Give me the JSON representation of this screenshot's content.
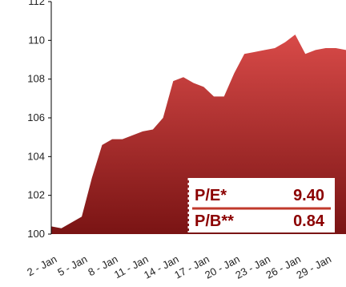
{
  "chart_data": {
    "type": "area",
    "title": "",
    "xlabel": "",
    "ylabel": "",
    "x": [
      "2-Jan",
      "3-Jan",
      "4-Jan",
      "5-Jan",
      "6-Jan",
      "7-Jan",
      "8-Jan",
      "9-Jan",
      "10-Jan",
      "11-Jan",
      "12-Jan",
      "13-Jan",
      "14-Jan",
      "15-Jan",
      "16-Jan",
      "17-Jan",
      "18-Jan",
      "19-Jan",
      "20-Jan",
      "21-Jan",
      "22-Jan",
      "23-Jan",
      "24-Jan",
      "25-Jan",
      "26-Jan",
      "27-Jan",
      "28-Jan",
      "29-Jan",
      "30-Jan",
      "31-Jan"
    ],
    "x_tick_labels": [
      "2 - Jan",
      "5 - Jan",
      "8 - Jan",
      "11 - Jan",
      "14 - Jan",
      "17 - Jan",
      "20 - Jan",
      "23 - Jan",
      "26 - Jan",
      "29 - Jan"
    ],
    "y_ticks": [
      100,
      102,
      104,
      106,
      108,
      110,
      112
    ],
    "ylim": [
      100,
      112
    ],
    "grid": false,
    "series": [
      {
        "color": "#c03030",
        "values": [
          100.4,
          100.3,
          100.6,
          100.9,
          102.9,
          104.6,
          104.9,
          104.9,
          105.1,
          105.3,
          105.4,
          106.0,
          107.9,
          108.1,
          107.8,
          107.6,
          107.1,
          107.1,
          108.3,
          109.3,
          109.4,
          109.5,
          109.6,
          109.9,
          110.3,
          109.3,
          109.5,
          109.6,
          109.6,
          109.5
        ]
      }
    ],
    "annotations": {
      "pe_label": "P/E*",
      "pe_value": "9.40",
      "pb_label": "P/B**",
      "pb_value": "0.84"
    }
  }
}
